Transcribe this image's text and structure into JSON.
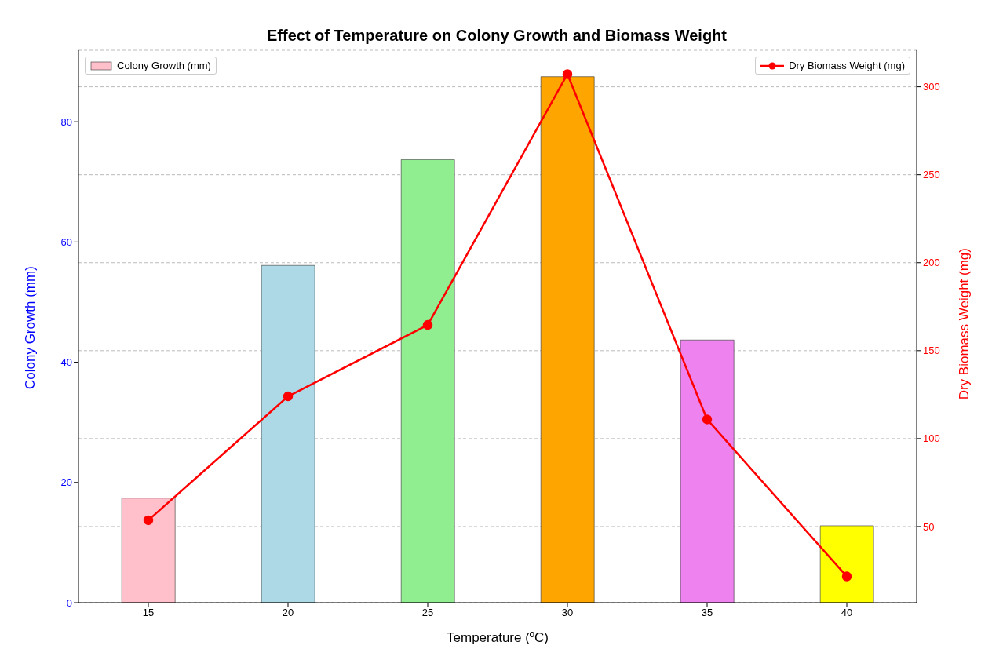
{
  "chart_data": {
    "type": "bar",
    "title": "Effect of Temperature on Colony Growth and Biomass Weight",
    "xlabel": "Temperature (ºC)",
    "ylabel": "Colony Growth (mm)",
    "y2label": "Dry Biomass Weight (mg)",
    "categories": [
      "15",
      "20",
      "25",
      "30",
      "35",
      "40"
    ],
    "series": [
      {
        "name": "Colony Growth (mm)",
        "colors": [
          "#ffc0cb",
          "#add8e6",
          "#90ee90",
          "#ffa500",
          "#ee82ee",
          "#ffff00"
        ],
        "values": [
          17.4,
          56.1,
          73.7,
          87.5,
          43.7,
          12.8
        ]
      },
      {
        "name": "Dry Biomass Weight (mg)",
        "type": "line",
        "axis": "y2",
        "color": "#ff0000",
        "marker": "circle",
        "values": [
          53.6,
          124,
          164.6,
          307.2,
          110.9,
          21.6
        ]
      }
    ],
    "ylim": [
      0,
      91.9
    ],
    "yticks": [
      0,
      20,
      40,
      60,
      80
    ],
    "y2lim": [
      6.7,
      320.8
    ],
    "y2ticks": [
      50,
      100,
      150,
      200,
      250,
      300
    ],
    "grid": "y2",
    "legend": "top"
  }
}
